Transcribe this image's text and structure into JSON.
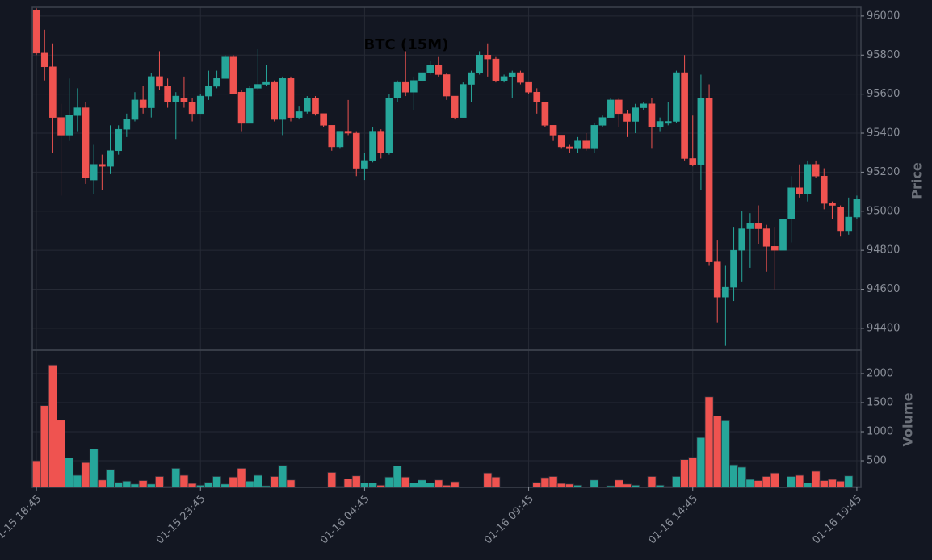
{
  "chart_data": {
    "type": "candlestick",
    "title": "BTC (15M)",
    "ylabel": "Price",
    "volume_label": "Volume",
    "up_color": "#26a69a",
    "down_color": "#ef5350",
    "grid": true,
    "ylim": [
      94288,
      96045
    ],
    "yticks": [
      94400,
      94600,
      94800,
      95000,
      95200,
      95400,
      95600,
      95800,
      96000
    ],
    "volume_ylim": [
      42,
      2403
    ],
    "volume_yticks": [
      500,
      1000,
      1500,
      2000
    ],
    "categories": [
      "01-15 18:45",
      null,
      null,
      null,
      null,
      null,
      null,
      null,
      null,
      null,
      null,
      null,
      null,
      null,
      null,
      null,
      null,
      null,
      null,
      null,
      "01-15 23:45",
      null,
      null,
      null,
      null,
      null,
      null,
      null,
      null,
      null,
      null,
      null,
      null,
      null,
      null,
      null,
      null,
      null,
      null,
      null,
      "01-16 04:45",
      null,
      null,
      null,
      null,
      null,
      null,
      null,
      null,
      null,
      null,
      null,
      null,
      null,
      null,
      null,
      null,
      null,
      null,
      null,
      "01-16 09:45",
      null,
      null,
      null,
      null,
      null,
      null,
      null,
      null,
      null,
      null,
      null,
      null,
      null,
      null,
      null,
      null,
      null,
      null,
      null,
      "01-16 14:45",
      null,
      null,
      null,
      null,
      null,
      null,
      null,
      null,
      null,
      null,
      null,
      null,
      null,
      null,
      null,
      null,
      null,
      null,
      null,
      "01-16 19:45"
    ],
    "open": [
      96030,
      95810,
      95740,
      95480,
      95390,
      95490,
      95530,
      95160,
      95240,
      95230,
      95310,
      95420,
      95470,
      95570,
      95530,
      95690,
      95640,
      95560,
      95580,
      95560,
      95500,
      95590,
      95640,
      95680,
      95790,
      95610,
      95450,
      95630,
      95650,
      95660,
      95470,
      95680,
      95480,
      95510,
      95580,
      95500,
      95440,
      95330,
      95410,
      95400,
      95220,
      95260,
      95410,
      95300,
      95580,
      95660,
      95610,
      95670,
      95710,
      95750,
      95700,
      95590,
      95480,
      95650,
      95710,
      95800,
      95780,
      95670,
      95690,
      95710,
      95660,
      95610,
      95560,
      95440,
      95390,
      95330,
      95320,
      95360,
      95320,
      95440,
      95480,
      95570,
      95500,
      95460,
      95530,
      95550,
      95430,
      95450,
      95460,
      95710,
      95270,
      95240,
      95580,
      94740,
      94560,
      94610,
      94800,
      94910,
      94940,
      94910,
      94820,
      94800,
      94960,
      95120,
      95090,
      95240,
      95180,
      95040,
      95020,
      94900,
      94970
    ],
    "high": [
      96040,
      95930,
      95860,
      95550,
      95680,
      95630,
      95560,
      95340,
      95290,
      95440,
      95440,
      95500,
      95610,
      95640,
      95710,
      95820,
      95680,
      95610,
      95690,
      95580,
      95600,
      95720,
      95720,
      95800,
      95800,
      95620,
      95640,
      95830,
      95750,
      95670,
      95690,
      95690,
      95540,
      95590,
      95590,
      95500,
      95440,
      95410,
      95570,
      95410,
      95300,
      95430,
      95420,
      95600,
      95670,
      95820,
      95690,
      95740,
      95770,
      95790,
      95710,
      95590,
      95660,
      95720,
      95820,
      95860,
      95790,
      95700,
      95720,
      95720,
      95660,
      95630,
      95560,
      95440,
      95390,
      95340,
      95380,
      95400,
      95450,
      95490,
      95580,
      95580,
      95520,
      95550,
      95560,
      95580,
      95480,
      95560,
      95720,
      95800,
      95490,
      95700,
      95650,
      94850,
      94720,
      94920,
      95000,
      94990,
      95030,
      94930,
      94920,
      94970,
      95180,
      95240,
      95260,
      95260,
      95220,
      95050,
      95030,
      95070,
      95080
    ],
    "low": [
      95800,
      95670,
      95300,
      95080,
      95360,
      95410,
      95140,
      95090,
      95110,
      95190,
      95290,
      95380,
      95460,
      95500,
      95480,
      95620,
      95530,
      95370,
      95530,
      95460,
      95500,
      95570,
      95630,
      95680,
      95600,
      95410,
      95450,
      95620,
      95640,
      95460,
      95390,
      95460,
      95470,
      95500,
      95490,
      95430,
      95310,
      95320,
      95390,
      95180,
      95160,
      95250,
      95270,
      95290,
      95560,
      95590,
      95520,
      95660,
      95700,
      95690,
      95570,
      95470,
      95480,
      95560,
      95700,
      95690,
      95660,
      95660,
      95580,
      95650,
      95600,
      95500,
      95430,
      95360,
      95320,
      95300,
      95300,
      95310,
      95300,
      95430,
      95480,
      95430,
      95380,
      95400,
      95520,
      95320,
      95410,
      95440,
      95450,
      95260,
      95230,
      95110,
      94720,
      94430,
      94310,
      94540,
      94640,
      94710,
      94830,
      94690,
      94600,
      94790,
      94840,
      95070,
      95050,
      95170,
      95010,
      94960,
      94870,
      94880,
      94960
    ],
    "close": [
      95810,
      95740,
      95480,
      95390,
      95490,
      95530,
      95170,
      95240,
      95230,
      95310,
      95420,
      95470,
      95570,
      95530,
      95690,
      95640,
      95560,
      95590,
      95560,
      95500,
      95590,
      95640,
      95680,
      95790,
      95600,
      95450,
      95630,
      95650,
      95660,
      95470,
      95680,
      95480,
      95510,
      95580,
      95500,
      95440,
      95330,
      95410,
      95400,
      95220,
      95260,
      95410,
      95300,
      95580,
      95660,
      95610,
      95670,
      95710,
      95750,
      95700,
      95590,
      95480,
      95650,
      95710,
      95800,
      95780,
      95670,
      95690,
      95710,
      95660,
      95610,
      95560,
      95440,
      95390,
      95330,
      95320,
      95360,
      95320,
      95440,
      95480,
      95570,
      95500,
      95460,
      95530,
      95550,
      95430,
      95460,
      95460,
      95710,
      95270,
      95240,
      95580,
      94740,
      94560,
      94610,
      94800,
      94910,
      94940,
      94910,
      94820,
      94800,
      94960,
      95120,
      95090,
      95240,
      95180,
      95040,
      95030,
      94900,
      94970,
      95060
    ],
    "volume": [
      500,
      1450,
      2150,
      1200,
      550,
      250,
      470,
      700,
      170,
      350,
      130,
      150,
      100,
      160,
      100,
      230,
      60,
      370,
      250,
      110,
      80,
      130,
      230,
      100,
      220,
      370,
      150,
      250,
      70,
      230,
      420,
      170,
      20,
      20,
      20,
      40,
      300,
      60,
      190,
      240,
      120,
      120,
      80,
      220,
      410,
      220,
      120,
      170,
      120,
      170,
      80,
      140,
      50,
      50,
      50,
      290,
      220,
      40,
      40,
      10,
      30,
      130,
      210,
      230,
      110,
      100,
      80,
      20,
      170,
      20,
      70,
      170,
      100,
      80,
      10,
      230,
      80,
      60,
      230,
      520,
      560,
      900,
      1600,
      1270,
      1190,
      430,
      390,
      180,
      160,
      230,
      290,
      50,
      230,
      250,
      120,
      320,
      160,
      180,
      150,
      240,
      60
    ]
  }
}
